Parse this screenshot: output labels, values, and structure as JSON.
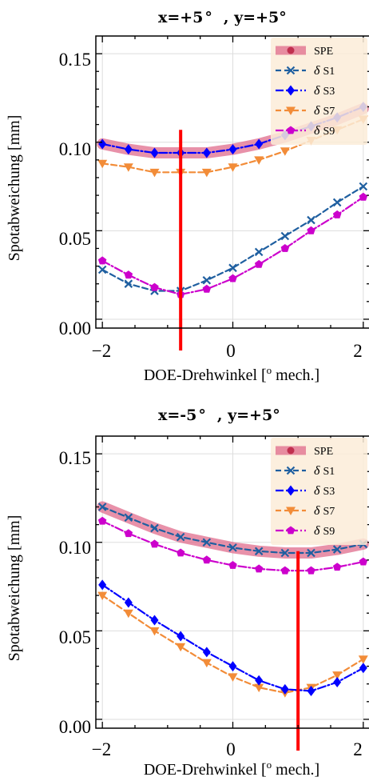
{
  "figure": {
    "xlabel": "DOE-Drehwinkel [",
    "xlabel_unit": " mech.]",
    "ylabel": "Spotabweichung [mm]",
    "xticks": [
      "−2",
      "0",
      "2"
    ],
    "yticks": [
      "0.00",
      "0.05",
      "0.10",
      "0.15"
    ]
  },
  "chart_data": [
    {
      "type": "line",
      "title": "x=+5°  , y=+5°",
      "title_x": "x=+5",
      "title_y": ", y=+5",
      "xlabel": "DOE-Drehwinkel [o mech.]",
      "ylabel": "Spotabweichung [mm]",
      "xlim": [
        -2.1,
        2.1
      ],
      "ylim": [
        -0.005,
        0.16
      ],
      "grid": true,
      "legend": "top-right",
      "marker_line_x": -0.8,
      "x": [
        -2.0,
        -1.6,
        -1.2,
        -0.8,
        -0.4,
        0.0,
        0.4,
        0.8,
        1.2,
        1.6,
        2.0
      ],
      "series": [
        {
          "name": "SPE",
          "color": "#e06c8c",
          "values": [
            0.099,
            0.096,
            0.094,
            0.094,
            0.094,
            0.096,
            0.099,
            0.103,
            0.108,
            0.113,
            0.119
          ]
        },
        {
          "name": "δ S1",
          "color": "#1f5fa0",
          "values": [
            0.028,
            0.02,
            0.016,
            0.016,
            0.022,
            0.029,
            0.038,
            0.047,
            0.056,
            0.066,
            0.075
          ]
        },
        {
          "name": "δ S3",
          "color": "#0000ff",
          "values": [
            0.099,
            0.096,
            0.094,
            0.094,
            0.094,
            0.096,
            0.099,
            0.104,
            0.109,
            0.114,
            0.12
          ]
        },
        {
          "name": "δ S7",
          "color": "#f28c38",
          "values": [
            0.088,
            0.086,
            0.083,
            0.083,
            0.083,
            0.086,
            0.09,
            0.095,
            0.101,
            0.107,
            0.113
          ]
        },
        {
          "name": "δ S9",
          "color": "#cc00cc",
          "values": [
            0.033,
            0.025,
            0.018,
            0.014,
            0.017,
            0.023,
            0.031,
            0.04,
            0.05,
            0.059,
            0.069
          ]
        }
      ]
    },
    {
      "type": "line",
      "title": "x=-5°  , y=+5°",
      "title_x": "x=-5",
      "title_y": ", y=+5",
      "xlabel": "DOE-Drehwinkel [o mech.]",
      "ylabel": "Spotabweichung [mm]",
      "xlim": [
        -2.1,
        2.1
      ],
      "ylim": [
        -0.005,
        0.16
      ],
      "grid": true,
      "legend": "top-right",
      "marker_line_x": 1.0,
      "x": [
        -2.0,
        -1.6,
        -1.2,
        -0.8,
        -0.4,
        0.0,
        0.4,
        0.8,
        1.2,
        1.6,
        2.0
      ],
      "series": [
        {
          "name": "SPE",
          "color": "#e06c8c",
          "values": [
            0.12,
            0.114,
            0.108,
            0.103,
            0.1,
            0.097,
            0.095,
            0.094,
            0.094,
            0.096,
            0.099
          ]
        },
        {
          "name": "δ S1",
          "color": "#1f5fa0",
          "values": [
            0.12,
            0.114,
            0.108,
            0.103,
            0.1,
            0.097,
            0.095,
            0.094,
            0.094,
            0.096,
            0.099
          ]
        },
        {
          "name": "δ S3",
          "color": "#0000ff",
          "values": [
            0.076,
            0.066,
            0.056,
            0.047,
            0.038,
            0.03,
            0.022,
            0.017,
            0.016,
            0.021,
            0.029
          ]
        },
        {
          "name": "δ S7",
          "color": "#f28c38",
          "values": [
            0.07,
            0.06,
            0.05,
            0.041,
            0.032,
            0.024,
            0.018,
            0.015,
            0.018,
            0.025,
            0.034
          ]
        },
        {
          "name": "δ S9",
          "color": "#cc00cc",
          "values": [
            0.112,
            0.105,
            0.099,
            0.094,
            0.09,
            0.087,
            0.085,
            0.084,
            0.084,
            0.086,
            0.089
          ]
        }
      ]
    }
  ]
}
